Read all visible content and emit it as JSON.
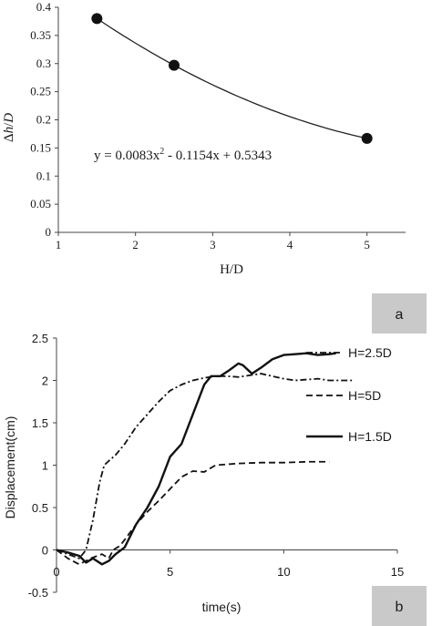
{
  "chart_data": [
    {
      "type": "scatter",
      "panel_label": "a",
      "xlabel": "H/D",
      "ylabel_parts": [
        "Δ",
        "h",
        "/",
        "D"
      ],
      "xlim": [
        1,
        5.5
      ],
      "ylim": [
        0,
        0.4
      ],
      "x_ticks": [
        "1",
        "2",
        "3",
        "4",
        "5"
      ],
      "y_ticks": [
        "0",
        "0.05",
        "0.1",
        "0.15",
        "0.2",
        "0.25",
        "0.3",
        "0.35",
        "0.4"
      ],
      "grid": false,
      "trendline": "polynomial",
      "equation_parts": [
        "y = 0.0083x",
        "2",
        " - 0.1154x + 0.5343"
      ],
      "coefficients": [
        0.0083,
        -0.1154,
        0.5343
      ],
      "points": [
        {
          "x": 1.5,
          "y": 0.38
        },
        {
          "x": 2.5,
          "y": 0.297
        },
        {
          "x": 5,
          "y": 0.167
        }
      ],
      "colors": {
        "marker": "#111111",
        "line": "#222222",
        "label_box": "#c9c9c9"
      }
    },
    {
      "type": "line",
      "panel_label": "b",
      "xlabel": "time(s)",
      "ylabel": "Displacement(cm)",
      "xlim": [
        0,
        15
      ],
      "ylim": [
        -0.5,
        2.5
      ],
      "x_ticks": [
        "0",
        "5",
        "10",
        "15"
      ],
      "y_ticks": [
        "-0.5",
        "0",
        "0.5",
        "1",
        "1.5",
        "2",
        "2.5"
      ],
      "grid": false,
      "legend_position": "right",
      "series": [
        {
          "name": "H=2.5D",
          "dash": "dashdot",
          "x": [
            0,
            0.5,
            1.0,
            1.3,
            1.6,
            1.9,
            2.1,
            2.3,
            2.6,
            3.0,
            3.5,
            4.0,
            4.5,
            5.0,
            5.5,
            6.0,
            6.5,
            7.0,
            7.5,
            8.0,
            8.5,
            9.0,
            9.5,
            10.0,
            10.5,
            11.0,
            11.5,
            12.0,
            12.5,
            13.0
          ],
          "y": [
            0,
            -0.05,
            -0.1,
            0.0,
            0.35,
            0.8,
            1.0,
            1.05,
            1.12,
            1.25,
            1.45,
            1.6,
            1.75,
            1.88,
            1.95,
            2.0,
            2.03,
            2.05,
            2.05,
            2.04,
            2.06,
            2.08,
            2.05,
            2.02,
            2.0,
            2.01,
            2.02,
            2.0,
            2.0,
            2.0
          ]
        },
        {
          "name": "H=5D",
          "dash": "dashed",
          "x": [
            0,
            0.5,
            1.0,
            1.5,
            2.0,
            2.3,
            2.5,
            2.8,
            3.0,
            3.5,
            4.0,
            4.5,
            5.0,
            5.5,
            6.0,
            6.5,
            7.0,
            8.0,
            9.0,
            10.0,
            11.0,
            12.0
          ],
          "y": [
            0,
            -0.1,
            -0.17,
            -0.1,
            -0.05,
            -0.1,
            0.0,
            0.05,
            0.12,
            0.3,
            0.45,
            0.58,
            0.72,
            0.86,
            0.93,
            0.92,
            1.0,
            1.02,
            1.03,
            1.03,
            1.04,
            1.04
          ]
        },
        {
          "name": "H=1.5D",
          "dash": "solid",
          "x": [
            0,
            0.5,
            1.0,
            1.3,
            1.6,
            2.0,
            2.3,
            2.6,
            3.0,
            3.5,
            4.0,
            4.5,
            5.0,
            5.5,
            6.0,
            6.5,
            6.8,
            7.2,
            7.6,
            8.0,
            8.2,
            8.6,
            9.0,
            9.5,
            10.0,
            10.5,
            11.0,
            11.5,
            12.0,
            12.3
          ],
          "y": [
            0,
            -0.03,
            -0.07,
            -0.15,
            -0.1,
            -0.17,
            -0.13,
            -0.05,
            0.03,
            0.3,
            0.5,
            0.75,
            1.1,
            1.25,
            1.6,
            1.95,
            2.05,
            2.05,
            2.12,
            2.2,
            2.18,
            2.08,
            2.15,
            2.25,
            2.3,
            2.31,
            2.32,
            2.3,
            2.31,
            2.32
          ]
        }
      ],
      "colors": {
        "line": "#111111",
        "label_box": "#c9c9c9"
      }
    }
  ]
}
